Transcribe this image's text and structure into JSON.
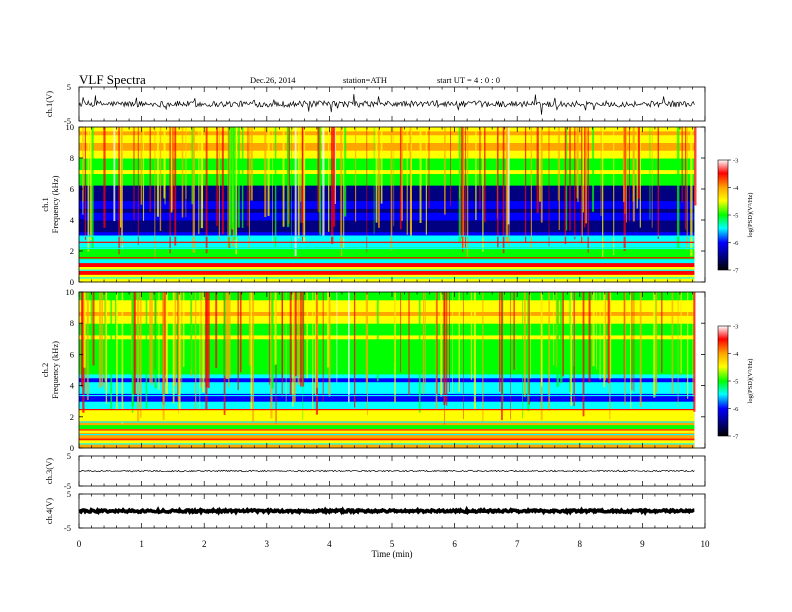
{
  "header": {
    "title": "VLF  Spectra",
    "date": "Dec.26, 2014",
    "station": "station=ATH",
    "start": "start  UT  =   4  : 0  : 0"
  },
  "chart_data": [
    {
      "type": "line",
      "panel": "ch1-waveform",
      "ylabel": "ch.1(V)",
      "xlim": [
        0,
        10
      ],
      "ylim": [
        -5,
        5
      ],
      "yticks": [
        "5",
        "-5"
      ],
      "baseline": 0,
      "data_xmax": 9.83
    },
    {
      "type": "heatmap",
      "panel": "ch1-spectrogram",
      "ylabel_channel": "ch.1",
      "ylabel": "Frequency  (kHz)",
      "xlim": [
        0,
        10
      ],
      "ylim": [
        0,
        10
      ],
      "yticks": [
        "0",
        "2",
        "4",
        "6",
        "8",
        "10"
      ],
      "data_xmax": 9.83,
      "colorbar": {
        "label": "log(PSD)(V²/Hz)",
        "range": [
          -7,
          -3
        ],
        "ticks": [
          "-3",
          "-4",
          "-5",
          "-6",
          "-7"
        ],
        "colors": [
          "#ffffff",
          "#ff0000",
          "#ffa500",
          "#ffff00",
          "#00ff00",
          "#00ffff",
          "#0000ff",
          "#000080",
          "#000000"
        ]
      }
    },
    {
      "type": "heatmap",
      "panel": "ch2-spectrogram",
      "ylabel_channel": "ch.2",
      "ylabel": "Frequency  (kHz)",
      "xlim": [
        0,
        10
      ],
      "ylim": [
        0,
        10
      ],
      "yticks": [
        "0",
        "2",
        "4",
        "6",
        "8",
        "10"
      ],
      "data_xmax": 9.83,
      "colorbar": {
        "label": "log(PSD)(V²/Hz)",
        "range": [
          -7,
          -3
        ],
        "ticks": [
          "-3",
          "-4",
          "-5",
          "-6",
          "-7"
        ],
        "colors": [
          "#ffffff",
          "#ff0000",
          "#ffa500",
          "#ffff00",
          "#00ff00",
          "#00ffff",
          "#0000ff",
          "#000080",
          "#000000"
        ]
      }
    },
    {
      "type": "line",
      "panel": "ch3-waveform",
      "ylabel": "ch.3(V)",
      "xlim": [
        0,
        10
      ],
      "ylim": [
        -5,
        5
      ],
      "yticks": [
        "5",
        "-5"
      ],
      "baseline": 0,
      "data_xmax": 9.83
    },
    {
      "type": "line",
      "panel": "ch4-waveform",
      "ylabel": "ch.4(V)",
      "xlim": [
        0,
        10
      ],
      "ylim": [
        -5,
        5
      ],
      "yticks": [
        "5",
        "-5"
      ],
      "baseline": 0,
      "data_xmax": 9.83
    }
  ],
  "xaxis": {
    "label": "Time  (min)",
    "ticks": [
      "0",
      "1",
      "2",
      "3",
      "4",
      "5",
      "6",
      "7",
      "8",
      "9",
      "10"
    ]
  }
}
